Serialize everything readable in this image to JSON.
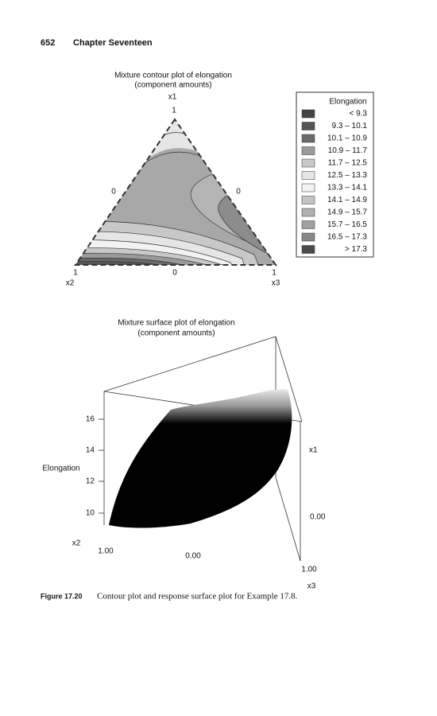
{
  "header": {
    "page_number": "652",
    "chapter": "Chapter Seventeen"
  },
  "contour_plot": {
    "title": "Mixture contour plot of elongation",
    "subtitle": "(component amounts)",
    "vertex_labels": {
      "top": "x1",
      "left": "x2",
      "right": "x3"
    },
    "tick_labels": {
      "top": "1",
      "left_side": "0",
      "right_side": "0",
      "bottom_left": "1",
      "bottom_middle": "0",
      "bottom_right": "1"
    },
    "legend": {
      "title": "Elongation",
      "items": [
        {
          "label": "< 9.3",
          "color": "#454545"
        },
        {
          "label": "9.3 – 10.1",
          "color": "#555555"
        },
        {
          "label": "10.1 – 10.9",
          "color": "#6a6a6a"
        },
        {
          "label": "10.9 – 11.7",
          "color": "#9a9a9a"
        },
        {
          "label": "11.7 – 12.5",
          "color": "#c8c8c8"
        },
        {
          "label": "12.5 – 13.3",
          "color": "#e6e6e6"
        },
        {
          "label": "13.3 – 14.1",
          "color": "#f2f2f2"
        },
        {
          "label": "14.1 – 14.9",
          "color": "#c4c4c4"
        },
        {
          "label": "14.9 – 15.7",
          "color": "#b0b0b0"
        },
        {
          "label": "15.7 – 16.5",
          "color": "#a0a0a0"
        },
        {
          "label": "16.5 – 17.3",
          "color": "#888888"
        },
        {
          "label": "> 17.3",
          "color": "#4a4a4a"
        }
      ]
    }
  },
  "surface_plot": {
    "title": "Mixture surface plot of elongation",
    "subtitle": "(component amounts)",
    "z_label": "Elongation",
    "z_ticks": [
      "16",
      "14",
      "12",
      "10"
    ],
    "axis_labels": {
      "x1": "x1",
      "x2": "x2",
      "x3": "x3"
    },
    "tick_labels": {
      "x1_zero": "0.00",
      "x2_one": "1.00",
      "middle_zero": "0.00",
      "x3_one": "1.00"
    }
  },
  "caption": {
    "label": "Figure 17.20",
    "text": "Contour plot and response surface plot for Example 17.8."
  }
}
